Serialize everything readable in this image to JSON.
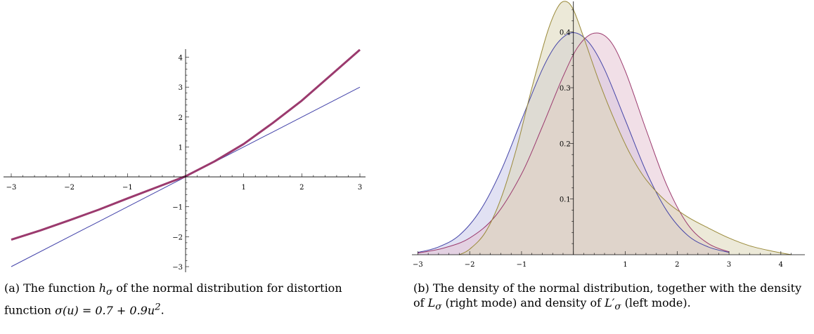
{
  "chart_data": [
    {
      "type": "line",
      "xlim": [
        -3,
        3
      ],
      "ylim": [
        -3,
        4.2
      ],
      "x_ticks": [
        -3,
        -2,
        -1,
        1,
        2,
        3
      ],
      "y_ticks": [
        -3,
        -2,
        -1,
        1,
        2,
        3,
        4
      ],
      "grid": false,
      "series": [
        {
          "id": "h_sigma",
          "color": "#9b3a6e",
          "x": [
            -3,
            -2.5,
            -2,
            -1.5,
            -1,
            -0.5,
            0,
            0.5,
            1,
            1.5,
            2,
            2.5,
            3
          ],
          "y": [
            -2.1,
            -1.79,
            -1.45,
            -1.1,
            -0.72,
            -0.35,
            0.02,
            0.52,
            1.1,
            1.8,
            2.55,
            3.4,
            4.25
          ]
        },
        {
          "id": "identity",
          "color": "#4444aa",
          "x": [
            -3,
            3
          ],
          "y": [
            -3,
            3
          ]
        }
      ],
      "caption": {
        "label": "(a)",
        "text1": "The function",
        "math1": "h",
        "sub1": "σ",
        "text2": "of the normal distribution for distortion function",
        "math2": "σ(u) = 0.7 + 0.9u",
        "sup2": "2",
        "text3": "."
      }
    },
    {
      "type": "area",
      "xlim": [
        -3.1,
        4.3
      ],
      "ylim": [
        0,
        0.45
      ],
      "x_ticks": [
        -3,
        -2,
        -1,
        1,
        2,
        3,
        4
      ],
      "y_ticks": [
        0.1,
        0.2,
        0.3,
        0.4
      ],
      "grid": false,
      "series": [
        {
          "id": "normal",
          "color": "#4646a8",
          "fill": "#c8c8ea",
          "x": [
            -3,
            -2.6,
            -2.2,
            -1.8,
            -1.4,
            -1,
            -0.6,
            -0.3,
            0,
            0.3,
            0.6,
            1,
            1.4,
            1.8,
            2.2,
            2.6,
            3
          ],
          "y": [
            0.004,
            0.014,
            0.035,
            0.079,
            0.15,
            0.242,
            0.333,
            0.381,
            0.399,
            0.381,
            0.333,
            0.242,
            0.15,
            0.079,
            0.035,
            0.014,
            0.004
          ]
        },
        {
          "id": "L_sigma",
          "color": "#9b3a6e",
          "fill": "#e6c4d4",
          "x": [
            -3,
            -2.5,
            -2,
            -1.5,
            -1,
            -0.6,
            -0.2,
            0.1,
            0.4,
            0.7,
            1,
            1.4,
            1.8,
            2.2,
            2.6,
            3
          ],
          "y": [
            0.003,
            0.012,
            0.03,
            0.07,
            0.145,
            0.23,
            0.32,
            0.375,
            0.398,
            0.385,
            0.33,
            0.225,
            0.125,
            0.055,
            0.02,
            0.005
          ]
        },
        {
          "id": "L_sigma_prime",
          "color": "#9a8a3a",
          "fill": "#dcd7b8",
          "x": [
            -2.2,
            -2,
            -1.7,
            -1.4,
            -1.1,
            -0.8,
            -0.5,
            -0.3,
            -0.15,
            0,
            0.2,
            0.5,
            0.8,
            1.1,
            1.4,
            1.8,
            2.2,
            2.6,
            3,
            3.4,
            3.8,
            4.2
          ],
          "y": [
            0.0,
            0.01,
            0.04,
            0.1,
            0.19,
            0.3,
            0.4,
            0.445,
            0.455,
            0.44,
            0.39,
            0.31,
            0.24,
            0.18,
            0.135,
            0.095,
            0.068,
            0.048,
            0.03,
            0.016,
            0.007,
            0.0
          ]
        }
      ],
      "caption": {
        "label": "(b)",
        "text1": "The density of the normal distribution, together with the density of",
        "math1": "L",
        "sub1": "σ",
        "text2": "(right mode) and density of",
        "math2": "L′",
        "sub2": "σ",
        "text3": "(left mode)."
      }
    }
  ]
}
